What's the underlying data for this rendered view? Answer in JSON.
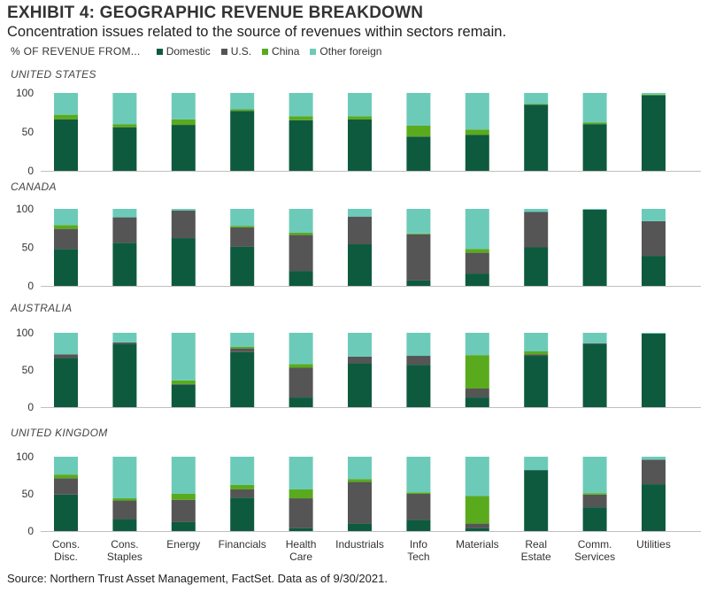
{
  "header": {
    "title": "EXHIBIT 4: GEOGRAPHIC REVENUE BREAKDOWN",
    "subtitle": "Concentration issues related to the source of revenues within sectors remain."
  },
  "legend": {
    "title": "% OF REVENUE  FROM...",
    "items": [
      {
        "label": "Domestic",
        "color": "#0e5a3e"
      },
      {
        "label": "U.S.",
        "color": "#555555"
      },
      {
        "label": "China",
        "color": "#5aaa1e"
      },
      {
        "label": "Other foreign",
        "color": "#6ccbb8"
      }
    ]
  },
  "source": "Source: Northern Trust Asset Management, FactSet. Data as of 9/30/2021.",
  "chart_data": {
    "type": "bar",
    "stacked": true,
    "categories": [
      [
        "Cons.",
        "Disc."
      ],
      [
        "Cons.",
        "Staples"
      ],
      [
        "Energy"
      ],
      [
        "Financials"
      ],
      [
        "Health",
        "Care"
      ],
      [
        "Industrials"
      ],
      [
        "Info",
        "Tech"
      ],
      [
        "Materials"
      ],
      [
        "Real",
        "Estate"
      ],
      [
        "Comm.",
        "Services"
      ],
      [
        "Utilities"
      ]
    ],
    "yticks": [
      0,
      50,
      100
    ],
    "ylim": [
      0,
      100
    ],
    "series_colors": [
      "#0e5a3e",
      "#555555",
      "#5aaa1e",
      "#6ccbb8"
    ],
    "panels": [
      {
        "label": "UNITED STATES",
        "stacks": [
          [
            66,
            0,
            6,
            28
          ],
          [
            56,
            0,
            4,
            40
          ],
          [
            59,
            0,
            7,
            34
          ],
          [
            77,
            0,
            2,
            21
          ],
          [
            65,
            0,
            5,
            30
          ],
          [
            66,
            0,
            4,
            30
          ],
          [
            44,
            0,
            14,
            42
          ],
          [
            46,
            0,
            7,
            47
          ],
          [
            85,
            0,
            1,
            14
          ],
          [
            60,
            0,
            2,
            38
          ],
          [
            97,
            0,
            1,
            2
          ]
        ]
      },
      {
        "label": "CANADA",
        "stacks": [
          [
            48,
            26,
            5,
            21
          ],
          [
            56,
            33,
            0,
            11
          ],
          [
            62,
            36,
            0,
            2
          ],
          [
            51,
            25,
            2,
            22
          ],
          [
            19,
            47,
            3,
            31
          ],
          [
            54,
            36,
            0,
            10
          ],
          [
            7,
            60,
            1,
            32
          ],
          [
            16,
            27,
            5,
            52
          ],
          [
            50,
            46,
            0,
            4
          ],
          [
            99,
            0,
            0,
            1
          ],
          [
            39,
            45,
            0,
            16
          ]
        ]
      },
      {
        "label": "AUSTRALIA",
        "stacks": [
          [
            66,
            5,
            0,
            29
          ],
          [
            85,
            2,
            0,
            13
          ],
          [
            30,
            1,
            5,
            64
          ],
          [
            74,
            5,
            2,
            19
          ],
          [
            13,
            40,
            5,
            42
          ],
          [
            59,
            9,
            0,
            32
          ],
          [
            57,
            12,
            0,
            31
          ],
          [
            13,
            12,
            45,
            30
          ],
          [
            69,
            2,
            4,
            25
          ],
          [
            85,
            1,
            0,
            14
          ],
          [
            99,
            0,
            0,
            1
          ]
        ]
      },
      {
        "label": "UNITED KINGDOM",
        "stacks": [
          [
            49,
            22,
            5,
            24
          ],
          [
            16,
            25,
            3,
            56
          ],
          [
            12,
            30,
            8,
            50
          ],
          [
            45,
            11,
            6,
            38
          ],
          [
            4,
            40,
            12,
            44
          ],
          [
            10,
            56,
            4,
            30
          ],
          [
            15,
            35,
            2,
            48
          ],
          [
            4,
            6,
            37,
            53
          ],
          [
            82,
            0,
            0,
            18
          ],
          [
            32,
            17,
            2,
            49
          ],
          [
            63,
            33,
            0,
            4
          ]
        ]
      }
    ]
  }
}
